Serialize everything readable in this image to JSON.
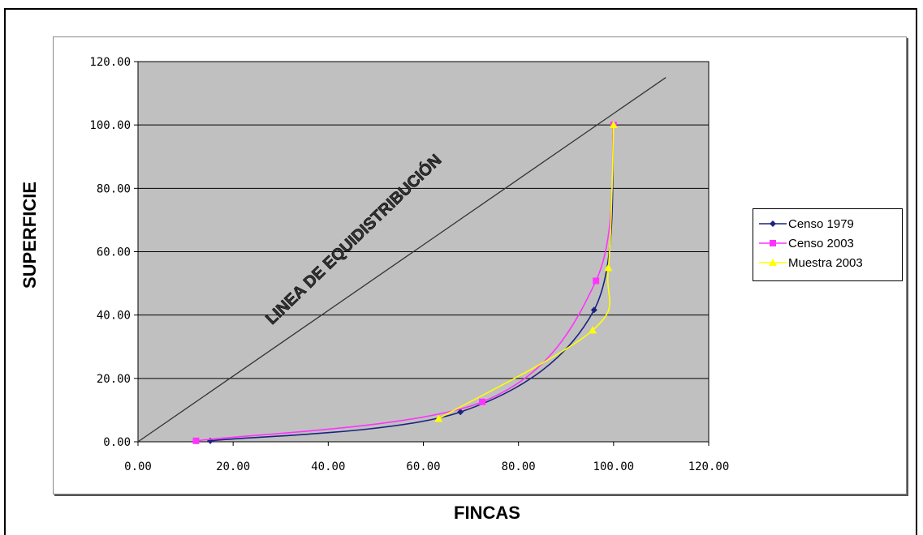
{
  "chart_data": {
    "type": "line",
    "title": "",
    "xlabel": "FINCAS",
    "ylabel": "SUPERFICIE",
    "xlim": [
      0,
      120
    ],
    "ylim": [
      0,
      120
    ],
    "x_ticks": [
      "0.00",
      "20.00",
      "40.00",
      "60.00",
      "80.00",
      "100.00",
      "120.00"
    ],
    "y_ticks": [
      "0.00",
      "20.00",
      "40.00",
      "60.00",
      "80.00",
      "100.00",
      "120.00"
    ],
    "grid": "horizontal",
    "legend_position": "right",
    "annotation": "LINEA DE EQUIDISTRIBUCIÓN",
    "reference_line": {
      "x": [
        0,
        111
      ],
      "y": [
        0,
        115
      ],
      "color": "#333333"
    },
    "series": [
      {
        "name": "Censo 1979",
        "color": "#1a237e",
        "marker": "diamond",
        "x": [
          15.2,
          67.8,
          95.9,
          100
        ],
        "y": [
          0.3,
          9.4,
          41.6,
          100
        ]
      },
      {
        "name": "Censo 2003",
        "color": "#ff33ff",
        "marker": "square",
        "x": [
          12.2,
          72.4,
          96.3,
          100
        ],
        "y": [
          0.3,
          12.6,
          50.8,
          100
        ]
      },
      {
        "name": "Muestra 2003",
        "color": "#ffff00",
        "marker": "triangle",
        "x": [
          63.2,
          95.6,
          98.9,
          100
        ],
        "y": [
          7.3,
          35.2,
          54.9,
          100
        ]
      }
    ]
  }
}
